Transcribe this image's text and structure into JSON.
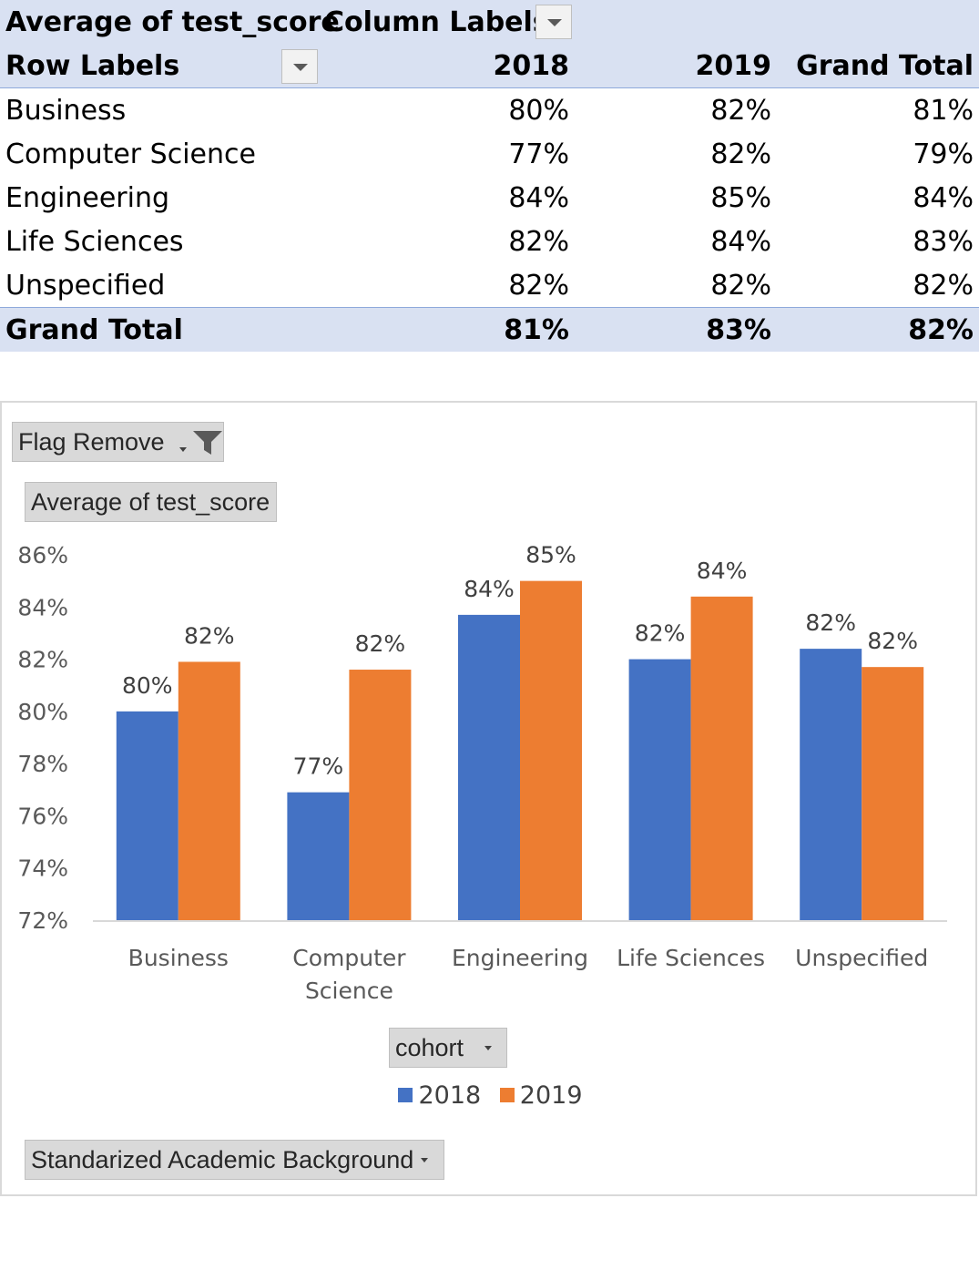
{
  "pivot": {
    "value_field": "Average of test_score",
    "column_labels": "Column Labels",
    "row_labels": "Row Labels",
    "columns": [
      "2018",
      "2019",
      "Grand Total"
    ],
    "rows": [
      {
        "label": "Business",
        "v2018": "80%",
        "v2019": "82%",
        "total": "81%"
      },
      {
        "label": "Computer Science",
        "v2018": "77%",
        "v2019": "82%",
        "total": "79%"
      },
      {
        "label": "Engineering",
        "v2018": "84%",
        "v2019": "85%",
        "total": "84%"
      },
      {
        "label": "Life Sciences",
        "v2018": "82%",
        "v2019": "84%",
        "total": "83%"
      },
      {
        "label": "Unspecified",
        "v2018": "82%",
        "v2019": "82%",
        "total": "82%"
      }
    ],
    "grand_total": {
      "label": "Grand Total",
      "v2018": "81%",
      "v2019": "83%",
      "total": "82%"
    }
  },
  "chart_buttons": {
    "filter": "Flag Remove",
    "values": "Average of test_score",
    "legend_field": "cohort",
    "axis_field": "Standarized Academic Background"
  },
  "chart_data": {
    "type": "bar",
    "categories": [
      [
        "Business"
      ],
      [
        "Computer",
        "Science"
      ],
      [
        "Engineering"
      ],
      [
        "Life Sciences"
      ],
      [
        "Unspecified"
      ]
    ],
    "series": [
      {
        "name": "2018",
        "color": "#4472c4",
        "values": [
          80.0,
          76.9,
          83.7,
          82.0,
          82.4
        ],
        "labels": [
          "80%",
          "77%",
          "84%",
          "82%",
          "82%"
        ]
      },
      {
        "name": "2019",
        "color": "#ed7d31",
        "values": [
          81.9,
          81.6,
          85.0,
          84.4,
          81.7
        ],
        "labels": [
          "82%",
          "82%",
          "85%",
          "84%",
          "82%"
        ]
      }
    ],
    "ylim": [
      72,
      86
    ],
    "yticks": [
      "72%",
      "74%",
      "76%",
      "78%",
      "80%",
      "82%",
      "84%",
      "86%"
    ],
    "grid": false,
    "legend": "bottom"
  }
}
